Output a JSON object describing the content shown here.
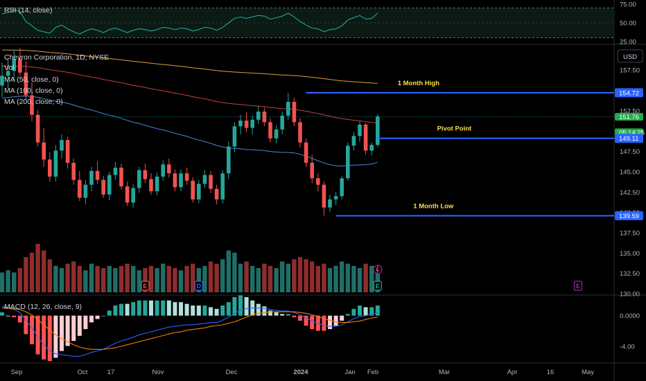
{
  "chart_data": {
    "type": "candlestick",
    "symbol_title": "Chevron Corporation, 1D, NYSE",
    "currency_button": "USD",
    "indicators": {
      "vol": "Vol",
      "ma50": "MA (50, close, 0)",
      "ma100": "MA (100, close, 0)",
      "ma200": "MA (200, close, 0)",
      "rsi": "RSI (14, close)",
      "macd": "MACD (12, 26, close, 9)"
    },
    "colors": {
      "up": "#26a69a",
      "down": "#ef5350",
      "ma50": "#4c86e0",
      "ma100": "#c93d3d",
      "ma200": "#d9a23a",
      "level": "#2962ff",
      "rsi": "#26a69a",
      "annotation": "#f7e04a",
      "vol_up": "#1f6e67",
      "vol_down": "#8e2d2d",
      "macd_line": "#2962ff",
      "signal_line": "#f57c00"
    },
    "price_axis_ticks": [
      "157.50",
      "155.00",
      "152.50",
      "150.00",
      "147.50",
      "145.00",
      "142.50",
      "140.00",
      "137.50",
      "135.00",
      "132.50",
      "130.00"
    ],
    "price_range": [
      130.0,
      160.5
    ],
    "rsi_axis_ticks": [
      "75.00",
      "50.00",
      "25.00"
    ],
    "rsi_range": [
      23,
      77
    ],
    "macd_axis_ticks": [
      "0.0000",
      "-4.00"
    ],
    "macd_range": [
      -6.0,
      2.5
    ],
    "time_axis": [
      "Sep",
      "Oct",
      "17",
      "Nov",
      "Dec",
      "2024",
      "Jan",
      "Feb",
      "Mar",
      "Apr",
      "16",
      "May"
    ],
    "levels": [
      {
        "label": "1  Month High",
        "value": 154.72,
        "tag": "154.72"
      },
      {
        "label": "Pivot Point",
        "value": 149.11,
        "tag": "149.11"
      },
      {
        "label": "1 Month Low",
        "value": 139.59,
        "tag": "139.59"
      }
    ],
    "last_price_tag": "151.76",
    "countdown_tag": "05:14:25",
    "last_price": 151.76,
    "event_markers": [
      {
        "letter": "E",
        "kind": "earnings"
      },
      {
        "letter": "D",
        "kind": "dividend"
      },
      {
        "letter": "E",
        "kind": "earnings"
      },
      {
        "letter": "E",
        "kind": "earnings"
      }
    ],
    "candles": [
      [
        155.6,
        158.4,
        154.2,
        156.8
      ],
      [
        156.8,
        159.0,
        155.2,
        157.4
      ],
      [
        157.4,
        160.0,
        156.1,
        158.9
      ],
      [
        158.9,
        160.2,
        156.8,
        157.2
      ],
      [
        157.2,
        158.6,
        153.9,
        154.4
      ],
      [
        154.4,
        156.0,
        151.2,
        152.0
      ],
      [
        152.0,
        152.6,
        148.1,
        148.6
      ],
      [
        148.6,
        150.4,
        145.6,
        146.5
      ],
      [
        146.5,
        147.4,
        143.8,
        144.4
      ],
      [
        144.4,
        148.3,
        143.8,
        147.6
      ],
      [
        147.6,
        149.6,
        146.6,
        148.9
      ],
      [
        148.9,
        149.3,
        145.4,
        146.1
      ],
      [
        146.1,
        146.6,
        143.4,
        144.0
      ],
      [
        144.0,
        145.1,
        141.4,
        141.8
      ],
      [
        141.8,
        144.0,
        141.0,
        143.4
      ],
      [
        143.4,
        145.6,
        142.6,
        145.1
      ],
      [
        145.1,
        146.3,
        143.5,
        144.0
      ],
      [
        144.0,
        144.5,
        141.8,
        142.2
      ],
      [
        142.2,
        145.0,
        141.5,
        144.6
      ],
      [
        144.6,
        146.2,
        144.0,
        145.5
      ],
      [
        145.5,
        146.0,
        142.8,
        143.2
      ],
      [
        143.2,
        143.8,
        140.8,
        141.2
      ],
      [
        141.2,
        143.5,
        140.6,
        143.0
      ],
      [
        143.0,
        145.6,
        142.4,
        145.2
      ],
      [
        145.2,
        146.0,
        143.6,
        144.1
      ],
      [
        144.1,
        144.8,
        142.2,
        142.6
      ],
      [
        142.6,
        144.9,
        142.1,
        144.4
      ],
      [
        144.4,
        146.4,
        143.9,
        145.9
      ],
      [
        145.9,
        146.6,
        144.3,
        144.8
      ],
      [
        144.8,
        145.3,
        142.6,
        143.1
      ],
      [
        143.1,
        145.3,
        142.6,
        144.8
      ],
      [
        144.8,
        145.5,
        143.4,
        143.9
      ],
      [
        143.9,
        144.3,
        141.2,
        141.6
      ],
      [
        141.6,
        144.0,
        141.1,
        143.5
      ],
      [
        143.5,
        145.2,
        143.0,
        144.6
      ],
      [
        144.6,
        145.1,
        142.4,
        142.9
      ],
      [
        142.9,
        143.4,
        141.0,
        141.6
      ],
      [
        141.6,
        145.2,
        141.1,
        144.8
      ],
      [
        144.8,
        148.7,
        144.1,
        148.1
      ],
      [
        148.1,
        151.1,
        147.4,
        150.6
      ],
      [
        150.6,
        152.0,
        149.6,
        151.3
      ],
      [
        151.3,
        152.3,
        149.9,
        150.4
      ],
      [
        150.4,
        151.9,
        149.6,
        151.4
      ],
      [
        151.4,
        153.1,
        150.9,
        152.4
      ],
      [
        152.4,
        152.9,
        150.6,
        151.1
      ],
      [
        151.1,
        151.6,
        148.6,
        149.1
      ],
      [
        149.1,
        150.7,
        148.5,
        150.2
      ],
      [
        150.2,
        152.4,
        149.6,
        151.9
      ],
      [
        151.9,
        154.7,
        151.4,
        153.6
      ],
      [
        153.6,
        154.1,
        150.6,
        151.1
      ],
      [
        151.1,
        151.6,
        148.0,
        148.6
      ],
      [
        148.6,
        149.1,
        145.6,
        146.1
      ],
      [
        146.1,
        147.1,
        143.6,
        144.2
      ],
      [
        144.2,
        144.8,
        142.6,
        143.4
      ],
      [
        143.4,
        143.8,
        139.6,
        140.6
      ],
      [
        140.6,
        142.2,
        140.1,
        141.6
      ],
      [
        141.6,
        142.5,
        140.9,
        142.0
      ],
      [
        142.0,
        144.5,
        141.6,
        144.2
      ],
      [
        144.2,
        148.6,
        143.9,
        148.2
      ],
      [
        148.2,
        149.9,
        147.6,
        149.4
      ],
      [
        149.4,
        151.2,
        148.7,
        150.8
      ],
      [
        150.8,
        151.0,
        147.1,
        147.6
      ],
      [
        147.6,
        148.6,
        147.0,
        148.3
      ],
      [
        148.3,
        152.1,
        148.0,
        151.8
      ]
    ],
    "rsi_values": [
      62,
      64,
      68,
      65,
      52,
      46,
      40,
      38,
      36,
      44,
      47,
      42,
      38,
      35,
      39,
      42,
      40,
      37,
      41,
      43,
      40,
      37,
      40,
      42,
      41,
      39,
      41,
      44,
      43,
      41,
      43,
      42,
      39,
      41,
      44,
      43,
      40,
      44,
      50,
      56,
      58,
      56,
      58,
      60,
      59,
      55,
      57,
      59,
      63,
      58,
      52,
      47,
      43,
      42,
      38,
      41,
      42,
      46,
      54,
      57,
      60,
      55,
      56,
      63
    ],
    "volumes": [
      9,
      10,
      9,
      11,
      16,
      18,
      22,
      19,
      15,
      12,
      11,
      13,
      14,
      12,
      10,
      13,
      12,
      11,
      12,
      11,
      12,
      13,
      12,
      10,
      11,
      12,
      11,
      13,
      12,
      11,
      10,
      12,
      13,
      11,
      12,
      14,
      13,
      15,
      19,
      18,
      13,
      14,
      12,
      11,
      13,
      12,
      11,
      14,
      13,
      15,
      16,
      15,
      14,
      12,
      13,
      11,
      12,
      14,
      13,
      12,
      11,
      13,
      12,
      12
    ],
    "macd_values": [
      1.2,
      1.0,
      0.8,
      0.4,
      -0.6,
      -1.6,
      -2.8,
      -3.8,
      -4.6,
      -5.0,
      -5.1,
      -5.2,
      -5.3,
      -5.3,
      -5.1,
      -4.8,
      -4.6,
      -4.4,
      -4.0,
      -3.6,
      -3.3,
      -3.1,
      -2.8,
      -2.5,
      -2.3,
      -2.1,
      -1.9,
      -1.7,
      -1.5,
      -1.4,
      -1.3,
      -1.2,
      -1.2,
      -1.1,
      -1.0,
      -0.9,
      -0.9,
      -0.6,
      -0.2,
      0.3,
      0.7,
      0.9,
      1.0,
      1.0,
      0.95,
      0.8,
      0.7,
      0.6,
      0.6,
      0.4,
      0.1,
      -0.3,
      -0.7,
      -1.0,
      -1.3,
      -1.4,
      -1.4,
      -1.2,
      -0.8,
      -0.4,
      -0.1,
      0.0,
      0.2,
      0.4
    ],
    "signal_values": [
      1.0,
      1.0,
      0.9,
      0.8,
      0.5,
      0.1,
      -0.5,
      -1.2,
      -1.9,
      -2.5,
      -3.0,
      -3.4,
      -3.8,
      -4.1,
      -4.3,
      -4.4,
      -4.4,
      -4.4,
      -4.3,
      -4.2,
      -4.0,
      -3.8,
      -3.6,
      -3.4,
      -3.2,
      -3.0,
      -2.8,
      -2.6,
      -2.4,
      -2.2,
      -2.1,
      -1.9,
      -1.8,
      -1.7,
      -1.6,
      -1.4,
      -1.3,
      -1.2,
      -1.0,
      -0.8,
      -0.5,
      -0.2,
      0.1,
      0.3,
      0.4,
      0.5,
      0.5,
      0.5,
      0.5,
      0.5,
      0.4,
      0.3,
      0.1,
      -0.1,
      -0.4,
      -0.6,
      -0.8,
      -0.9,
      -0.9,
      -0.8,
      -0.7,
      -0.5,
      -0.3,
      -0.2
    ]
  }
}
